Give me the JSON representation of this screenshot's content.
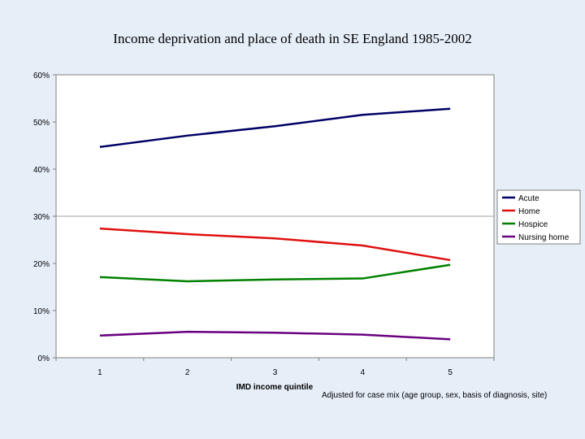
{
  "chart_data": {
    "type": "line",
    "title": "Income deprivation and place of death in SE England 1985-2002",
    "xlabel": "IMD income quintile",
    "note": "Adjusted for case mix (age group, sex, basis of diagnosis, site)",
    "categories": [
      "1",
      "2",
      "3",
      "4",
      "5"
    ],
    "y_ticks": [
      "0%",
      "10%",
      "20%",
      "30%",
      "40%",
      "50%",
      "60%"
    ],
    "ylim": [
      0,
      60
    ],
    "grid": "horizontal at 30% only",
    "legend_position": "right",
    "series": [
      {
        "name": "Acute",
        "color": "#000066",
        "values": [
          44.7,
          47.1,
          49.1,
          51.5,
          52.8
        ]
      },
      {
        "name": "Home",
        "color": "#e01010",
        "values": [
          27.4,
          26.2,
          25.3,
          23.8,
          20.7
        ]
      },
      {
        "name": "Hospice",
        "color": "#008000",
        "values": [
          17.1,
          16.2,
          16.6,
          16.8,
          19.7
        ]
      },
      {
        "name": "Nursing home",
        "color": "#6a0080",
        "values": [
          4.7,
          5.5,
          5.3,
          4.9,
          3.9
        ]
      }
    ]
  }
}
